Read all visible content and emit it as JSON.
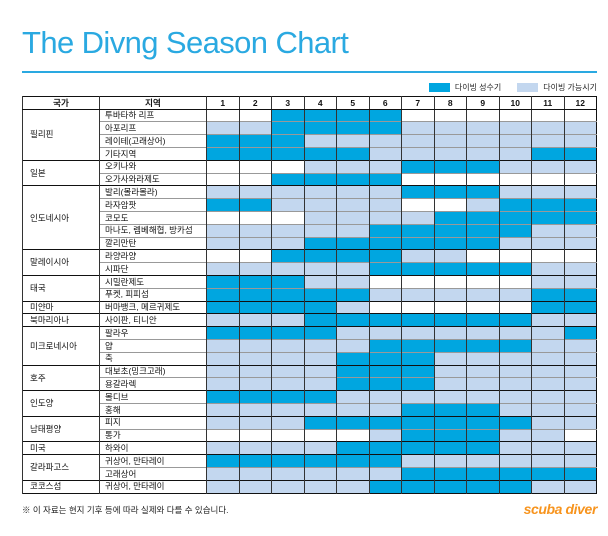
{
  "title": "The Divng Season Chart",
  "colors": {
    "accent": "#2AA9E1",
    "peak": "#00A6E0",
    "possible": "#C3D7EF",
    "logo": "#F7941E"
  },
  "legend": {
    "peak_label": "다이빙 성수기",
    "possible_label": "다이빙 가능시기"
  },
  "chart_data": {
    "type": "heatmap",
    "title": "The Divng Season Chart",
    "row_headers": [
      "국가",
      "지역"
    ],
    "x": [
      "1",
      "2",
      "3",
      "4",
      "5",
      "6",
      "7",
      "8",
      "9",
      "10",
      "11",
      "12"
    ],
    "value_legend": {
      "D": "다이빙 성수기 (peak diving season)",
      "L": "다이빙 가능시기 (diving possible)",
      "W": "blank (not in season)"
    },
    "groups": [
      {
        "country": "필리핀",
        "rows": [
          {
            "region": "투바타하 리프",
            "months": "WWDDDDWWWWWW"
          },
          {
            "region": "아포리프",
            "months": "LLDDDDLLLLLL"
          },
          {
            "region": "레이테(고래상어)",
            "months": "DDDLLLLLLLLL"
          },
          {
            "region": "기타지역",
            "months": "DDDDDLLLLLDD"
          }
        ]
      },
      {
        "country": "일본",
        "rows": [
          {
            "region": "오키나와",
            "months": "WWWLLLDDDLLL"
          },
          {
            "region": "오가사와라제도",
            "months": "WWDDDDWWWWWW"
          }
        ]
      },
      {
        "country": "인도네시아",
        "rows": [
          {
            "region": "발리(몰라몰라)",
            "months": "LLLLLLDDDLLL"
          },
          {
            "region": "라자암팟",
            "months": "DDLLLLWWLDDD"
          },
          {
            "region": "코모도",
            "months": "WWWLLLLDDDDD"
          },
          {
            "region": "마나도, 렘베해협, 방카섬",
            "months": "LLLLLDDDDDLL"
          },
          {
            "region": "깔리만탄",
            "months": "LLLDDDDDDLLL"
          }
        ]
      },
      {
        "country": "말레이시아",
        "rows": [
          {
            "region": "라양라양",
            "months": "WWDDDDLLWWWW"
          },
          {
            "region": "시파단",
            "months": "LLLLLDDDDDLL"
          }
        ]
      },
      {
        "country": "태국",
        "rows": [
          {
            "region": "시밀란제도",
            "months": "DDDLLWWWWWLL"
          },
          {
            "region": "푸켓, 피피섬",
            "months": "DDDDDLLLLLDD"
          }
        ]
      },
      {
        "country": "미얀마",
        "rows": [
          {
            "region": "버마뱅크, 메르귀제도",
            "months": "DDDDLWWWWWDD"
          }
        ]
      },
      {
        "country": "북마리아나",
        "rows": [
          {
            "region": "사이판, 티니안",
            "months": "LLLDDDDDDDLL"
          }
        ]
      },
      {
        "country": "미크로네시아",
        "rows": [
          {
            "region": "팔라우",
            "months": "DDDDLLLLLLLD"
          },
          {
            "region": "얍",
            "months": "LLLLLDDDDDLL"
          },
          {
            "region": "축",
            "months": "LLLLDDDLLLLL"
          }
        ]
      },
      {
        "country": "호주",
        "rows": [
          {
            "region": "대보초(밍크고래)",
            "months": "LLLLDDDLLLLL"
          },
          {
            "region": "용갈라렉",
            "months": "LLLLDDDLLLLL"
          }
        ]
      },
      {
        "country": "인도양",
        "rows": [
          {
            "region": "몰디브",
            "months": "DDDDLLLLLLLL"
          },
          {
            "region": "홍해",
            "months": "LLLLLLDDDLLL"
          }
        ]
      },
      {
        "country": "남태평양",
        "rows": [
          {
            "region": "피지",
            "months": "LLLDDDDDDDLL"
          },
          {
            "region": "통가",
            "months": "WWWWWLDDDLLW"
          }
        ]
      },
      {
        "country": "미국",
        "rows": [
          {
            "region": "하와이",
            "months": "LLLLDDDDDLLL"
          }
        ]
      },
      {
        "country": "갈라파고스",
        "rows": [
          {
            "region": "귀상어, 만타레이",
            "months": "DDDDDDLLLLLL"
          },
          {
            "region": "고래상어",
            "months": "LLLLLLDDDDDD"
          }
        ]
      },
      {
        "country": "코코스섬",
        "rows": [
          {
            "region": "귀상어, 만타레이",
            "months": "LLLLLDDDDDLL"
          }
        ]
      }
    ]
  },
  "footer": {
    "note": "※ 이 자료는 현지 기후 등에 따라 실제와 다를 수 있습니다.",
    "logo": "scuba diver"
  }
}
